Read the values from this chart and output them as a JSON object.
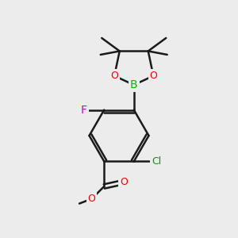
{
  "bg_color": "#ececec",
  "line_color": "#1a1a1a",
  "bond_width": 1.8,
  "atom_colors": {
    "B": "#00bb00",
    "O": "#ee0000",
    "F": "#cc00cc",
    "Cl": "#009900"
  },
  "font_size_atom": 10
}
